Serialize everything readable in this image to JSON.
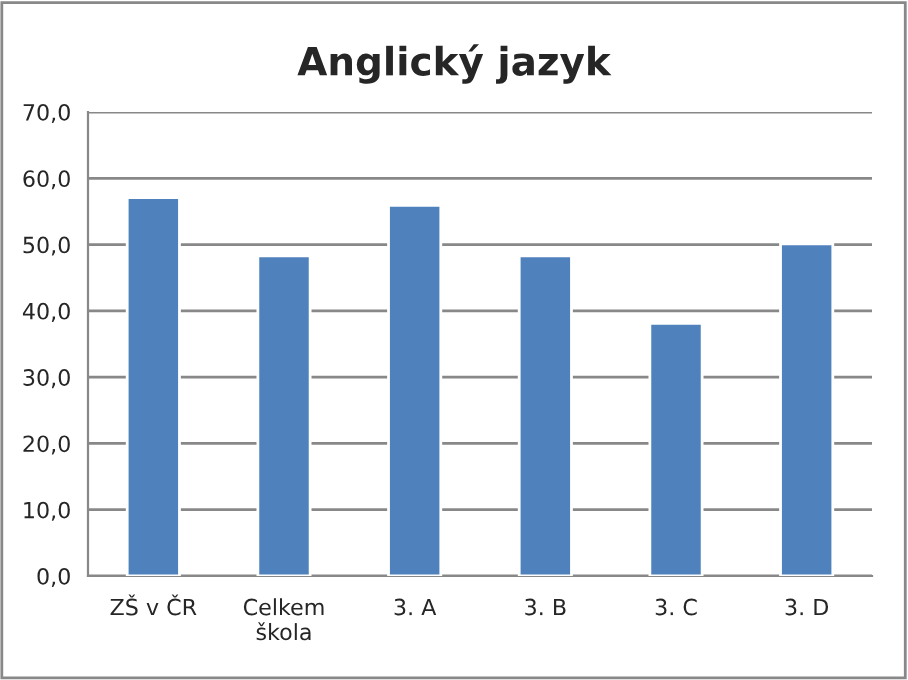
{
  "chart_data": {
    "type": "bar",
    "title": "Anglický jazyk",
    "categories": [
      "ZŠ v ČR",
      "Celkem škola",
      "3. A",
      "3. B",
      "3. C",
      "3. D"
    ],
    "values": [
      57.1,
      48.3,
      55.9,
      48.3,
      38.1,
      50.1
    ],
    "color": "#4f81bd",
    "ylim": [
      0,
      70
    ],
    "yticks": [
      {
        "value": 0,
        "label": "0,0"
      },
      {
        "value": 10,
        "label": "10,0"
      },
      {
        "value": 20,
        "label": "20,0"
      },
      {
        "value": 30,
        "label": "30,0"
      },
      {
        "value": 40,
        "label": "40,0"
      },
      {
        "value": 50,
        "label": "50,0"
      },
      {
        "value": 60,
        "label": "60,0"
      },
      {
        "value": 70,
        "label": "70,0"
      }
    ],
    "grid": "y",
    "legend": false
  }
}
